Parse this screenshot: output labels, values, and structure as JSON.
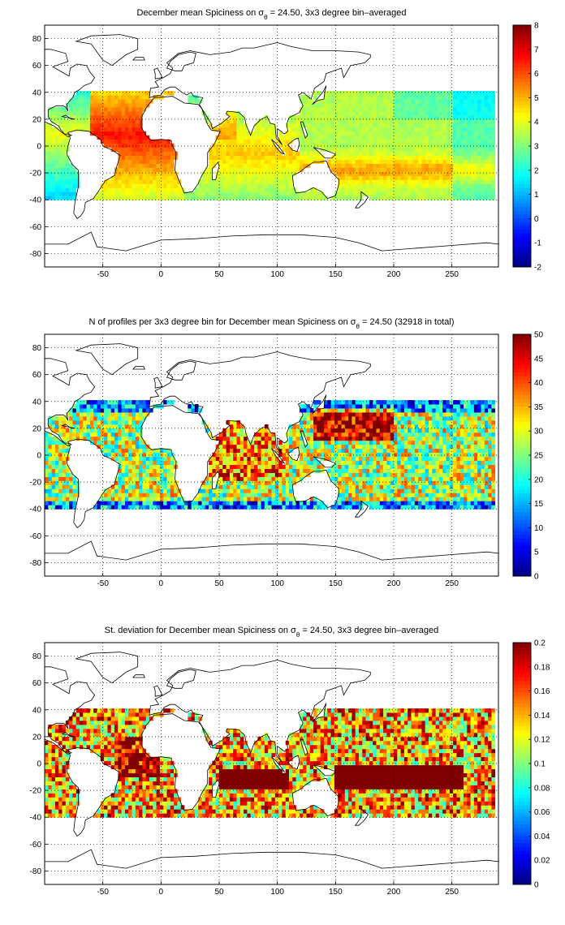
{
  "chart_data": [
    {
      "type": "heatmap",
      "title_parts": [
        "December mean Spiciness on σ",
        "θ",
        " = 24.50, 3x3 degree bin–averaged"
      ],
      "xlim": [
        -100,
        290
      ],
      "ylim": [
        -90,
        90
      ],
      "xticks": [
        -50,
        0,
        50,
        100,
        150,
        200,
        250
      ],
      "yticks": [
        -80,
        -60,
        -40,
        -20,
        0,
        20,
        40,
        60,
        80
      ],
      "grid": true,
      "colorbar": {
        "min": -2,
        "max": 8,
        "ticks": [
          -2,
          -1,
          0,
          1,
          2,
          3,
          4,
          5,
          6,
          7,
          8
        ],
        "colormap": "jet"
      },
      "variable": "spice",
      "map_feature": "world-coastlines"
    },
    {
      "type": "heatmap",
      "title_parts": [
        "N of profiles per 3x3 degree bin for December mean Spiciness on σ",
        "θ",
        " = 24.50 (32918 in total)"
      ],
      "xlim": [
        -100,
        290
      ],
      "ylim": [
        -90,
        90
      ],
      "xticks": [
        -50,
        0,
        50,
        100,
        150,
        200,
        250
      ],
      "yticks": [
        -80,
        -60,
        -40,
        -20,
        0,
        20,
        40,
        60,
        80
      ],
      "grid": true,
      "colorbar": {
        "min": 0,
        "max": 50,
        "ticks": [
          0,
          5,
          10,
          15,
          20,
          25,
          30,
          35,
          40,
          45,
          50
        ],
        "colormap": "jet"
      },
      "variable": "count",
      "map_feature": "world-coastlines"
    },
    {
      "type": "heatmap",
      "title_parts": [
        "St. deviation for December mean Spiciness on σ",
        "θ",
        " = 24.50, 3x3 degree bin–averaged"
      ],
      "xlim": [
        -100,
        290
      ],
      "ylim": [
        -90,
        90
      ],
      "xticks": [
        -50,
        0,
        50,
        100,
        150,
        200,
        250
      ],
      "yticks": [
        -80,
        -60,
        -40,
        -20,
        0,
        20,
        40,
        60,
        80
      ],
      "grid": true,
      "colorbar": {
        "min": 0,
        "max": 0.2,
        "ticks": [
          0,
          0.02,
          0.04,
          0.06,
          0.08,
          0.1,
          0.12,
          0.14,
          0.16,
          0.18,
          0.2
        ],
        "colormap": "jet"
      },
      "variable": "std",
      "map_feature": "world-coastlines"
    }
  ]
}
